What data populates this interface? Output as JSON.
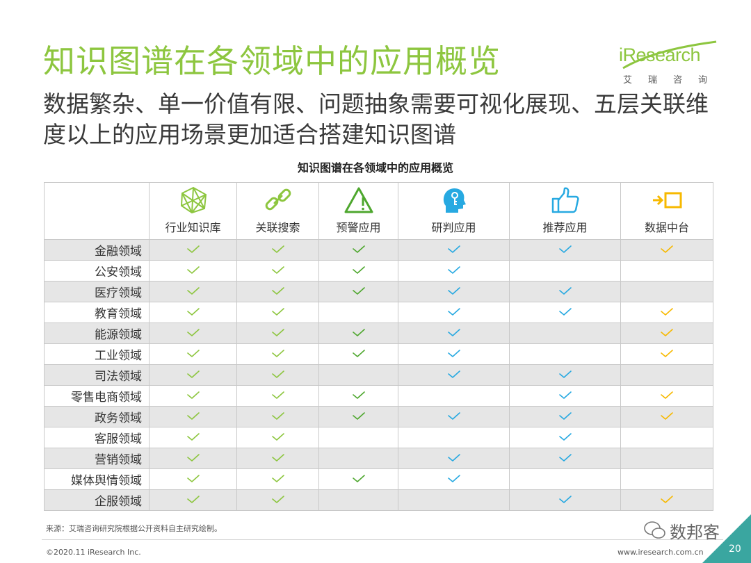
{
  "title": "知识图谱在各领域中的应用概览",
  "subtitle": "数据繁杂、单一价值有限、问题抽象需要可视化展现、五层关联维度以上的应用场景更加适合搭建知识图谱",
  "logo": {
    "brand": "iResearch",
    "brand_cn": "艾瑞咨询"
  },
  "table_title": "知识图谱在各领域中的应用概览",
  "columns": [
    {
      "label": "行业知识库",
      "icon": "network-graph-icon",
      "color": "#8dc63f"
    },
    {
      "label": "关联搜索",
      "icon": "chain-link-icon",
      "color": "#8dc63f"
    },
    {
      "label": "预警应用",
      "icon": "warning-triangle-icon",
      "color": "#4ea72e"
    },
    {
      "label": "研判应用",
      "icon": "head-key-icon",
      "color": "#27a9e1"
    },
    {
      "label": "推荐应用",
      "icon": "thumbs-up-icon",
      "color": "#27a9e1"
    },
    {
      "label": "数据中台",
      "icon": "arrow-into-box-icon",
      "color": "#f7b900"
    }
  ],
  "rows": [
    {
      "label": "金融领域",
      "checks": [
        true,
        true,
        true,
        true,
        true,
        true
      ]
    },
    {
      "label": "公安领域",
      "checks": [
        true,
        true,
        true,
        true,
        false,
        false
      ]
    },
    {
      "label": "医疗领域",
      "checks": [
        true,
        true,
        true,
        true,
        true,
        false
      ]
    },
    {
      "label": "教育领域",
      "checks": [
        true,
        true,
        false,
        true,
        true,
        true
      ]
    },
    {
      "label": "能源领域",
      "checks": [
        true,
        true,
        true,
        true,
        false,
        true
      ]
    },
    {
      "label": "工业领域",
      "checks": [
        true,
        true,
        true,
        true,
        false,
        true
      ]
    },
    {
      "label": "司法领域",
      "checks": [
        true,
        true,
        false,
        true,
        true,
        false
      ]
    },
    {
      "label": "零售电商领域",
      "checks": [
        true,
        true,
        true,
        false,
        true,
        true
      ]
    },
    {
      "label": "政务领域",
      "checks": [
        true,
        true,
        true,
        true,
        true,
        true
      ]
    },
    {
      "label": "客服领域",
      "checks": [
        true,
        true,
        false,
        false,
        true,
        false
      ]
    },
    {
      "label": "营销领域",
      "checks": [
        true,
        true,
        false,
        true,
        true,
        false
      ]
    },
    {
      "label": "媒体舆情领域",
      "checks": [
        true,
        true,
        true,
        true,
        false,
        false
      ]
    },
    {
      "label": "企服领域",
      "checks": [
        true,
        true,
        false,
        false,
        true,
        true
      ]
    }
  ],
  "source": "来源：艾瑞咨询研究院根据公开资料自主研究绘制。",
  "copyright": "©2020.11 iResearch Inc.",
  "website": "www.iresearch.com.cn",
  "watermark": "数邦客",
  "page_number": "20",
  "colors": {
    "title_green": "#8dc63f",
    "shade_gray": "#e6e6e6",
    "corner_teal": "#3aa6a0"
  }
}
